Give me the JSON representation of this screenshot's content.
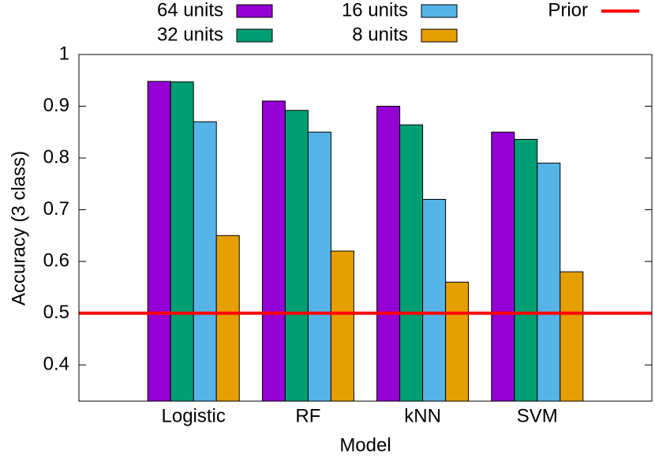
{
  "chart_data": {
    "type": "bar",
    "y_label": "Accuracy (3 class)",
    "x_label": "Model",
    "categories": [
      "Logistic",
      "RF",
      "kNN",
      "SVM"
    ],
    "series": [
      {
        "name": "64 units",
        "color": "#9400d3",
        "values": [
          0.948,
          0.91,
          0.9,
          0.85
        ]
      },
      {
        "name": "32 units",
        "color": "#009e73",
        "values": [
          0.947,
          0.892,
          0.864,
          0.836
        ]
      },
      {
        "name": "16 units",
        "color": "#56b4e9",
        "values": [
          0.87,
          0.85,
          0.72,
          0.79
        ]
      },
      {
        "name": "8 units",
        "color": "#e69f00",
        "values": [
          0.65,
          0.62,
          0.56,
          0.58
        ]
      }
    ],
    "reference_lines": [
      {
        "name": "Prior",
        "value": 0.5,
        "color": "#ff0000"
      }
    ],
    "ylim": [
      0.33,
      1
    ],
    "yticks": [
      0.4,
      0.5,
      0.6,
      0.7,
      0.8,
      0.9,
      1
    ],
    "grid": false
  }
}
